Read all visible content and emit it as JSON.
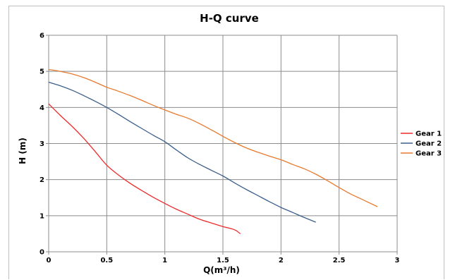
{
  "chart_data": {
    "type": "line",
    "title": "H-Q  curve",
    "xlabel": "Q(m³/h)",
    "ylabel": "H  (m)",
    "xlim": [
      0,
      3
    ],
    "ylim": [
      0,
      6
    ],
    "xticks": [
      "0",
      "0.5",
      "1",
      "1.5",
      "2",
      "2.5",
      "3"
    ],
    "yticks": [
      "0",
      "1",
      "2",
      "3",
      "4",
      "5",
      "6"
    ],
    "grid": true,
    "legend_position": "right",
    "series": [
      {
        "name": "Gear 1",
        "color": "#ee2a2a",
        "x": [
          0,
          0.1,
          0.2,
          0.3,
          0.4,
          0.5,
          0.6,
          0.7,
          0.8,
          0.9,
          1.0,
          1.1,
          1.2,
          1.3,
          1.4,
          1.5,
          1.6,
          1.65
        ],
        "y": [
          4.1,
          3.78,
          3.48,
          3.15,
          2.78,
          2.4,
          2.13,
          1.9,
          1.7,
          1.51,
          1.34,
          1.18,
          1.04,
          0.9,
          0.8,
          0.7,
          0.61,
          0.5
        ]
      },
      {
        "name": "Gear 2",
        "color": "#3b5f8a",
        "x": [
          0,
          0.1,
          0.2,
          0.3,
          0.4,
          0.5,
          0.6,
          0.7,
          0.8,
          0.9,
          1.0,
          1.1,
          1.2,
          1.3,
          1.4,
          1.5,
          1.6,
          1.7,
          1.8,
          1.9,
          2.0,
          2.1,
          2.2,
          2.3
        ],
        "y": [
          4.7,
          4.6,
          4.48,
          4.33,
          4.17,
          4.0,
          3.81,
          3.61,
          3.42,
          3.23,
          3.05,
          2.82,
          2.6,
          2.42,
          2.26,
          2.1,
          1.91,
          1.73,
          1.56,
          1.39,
          1.23,
          1.09,
          0.95,
          0.82
        ]
      },
      {
        "name": "Gear 3",
        "color": "#e77a2f",
        "x": [
          0,
          0.1,
          0.2,
          0.3,
          0.4,
          0.5,
          0.6,
          0.7,
          0.8,
          0.9,
          1.0,
          1.1,
          1.2,
          1.3,
          1.4,
          1.5,
          1.6,
          1.7,
          1.8,
          1.9,
          2.0,
          2.1,
          2.2,
          2.3,
          2.4,
          2.5,
          2.6,
          2.7,
          2.83
        ],
        "y": [
          5.05,
          5.0,
          4.93,
          4.83,
          4.7,
          4.56,
          4.45,
          4.33,
          4.2,
          4.06,
          3.93,
          3.81,
          3.7,
          3.55,
          3.38,
          3.2,
          3.03,
          2.88,
          2.76,
          2.65,
          2.55,
          2.42,
          2.3,
          2.15,
          1.97,
          1.78,
          1.6,
          1.45,
          1.25
        ]
      }
    ]
  }
}
